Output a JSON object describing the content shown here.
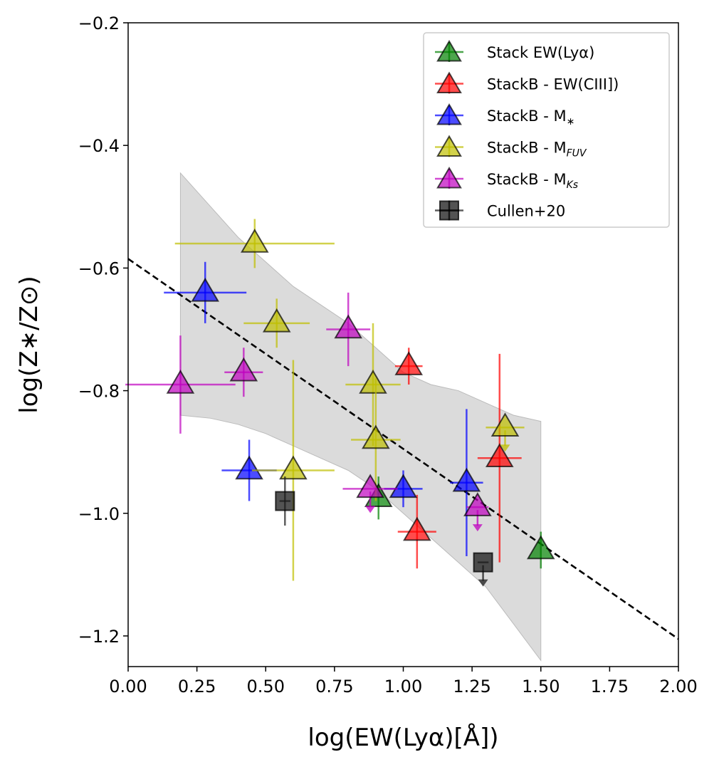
{
  "chart_data": {
    "type": "scatter",
    "title": "",
    "xlabel": "log(EW(Lyα)[Å])",
    "ylabel": "log(Z∗/Z⊙)",
    "xlim": [
      0.0,
      2.0
    ],
    "ylim": [
      -1.25,
      -0.2
    ],
    "xticks": [
      0.0,
      0.25,
      0.5,
      0.75,
      1.0,
      1.25,
      1.5,
      1.75,
      2.0
    ],
    "xtick_labels": [
      "0.00",
      "0.25",
      "0.50",
      "0.75",
      "1.00",
      "1.25",
      "1.50",
      "1.75",
      "2.00"
    ],
    "yticks": [
      -1.2,
      -1.0,
      -0.8,
      -0.6,
      -0.4,
      -0.2
    ],
    "ytick_labels": [
      "−1.2",
      "−1.0",
      "−0.8",
      "−0.6",
      "−0.4",
      "−0.2"
    ],
    "grid": false,
    "legend_position": "top-right",
    "fit_line": {
      "slope": -0.31,
      "intercept": -0.585,
      "style": "dashed",
      "color": "#000000"
    },
    "confidence_band": {
      "color": "#cccccc",
      "x": [
        0.19,
        0.3,
        0.4,
        0.5,
        0.6,
        0.7,
        0.8,
        0.9,
        1.0,
        1.1,
        1.2,
        1.3,
        1.4,
        1.5
      ],
      "upper": [
        -0.445,
        -0.5,
        -0.55,
        -0.59,
        -0.63,
        -0.66,
        -0.69,
        -0.73,
        -0.77,
        -0.79,
        -0.8,
        -0.82,
        -0.84,
        -0.85
      ],
      "lower": [
        -0.84,
        -0.845,
        -0.855,
        -0.87,
        -0.89,
        -0.91,
        -0.93,
        -0.96,
        -1.0,
        -1.04,
        -1.08,
        -1.12,
        -1.18,
        -1.24
      ]
    },
    "series": [
      {
        "name": "Stack EW(Lyα)",
        "legend_main": "Stack EW(Ly",
        "legend_sub": "",
        "legend_suffix": "α)",
        "color": "#008000",
        "marker": "triangle",
        "points": [
          {
            "x": 0.91,
            "y": -0.975,
            "xerr": 0.0,
            "yerr": 0.035,
            "upper_limit": false
          },
          {
            "x": 1.5,
            "y": -1.06,
            "xerr": 0.0,
            "yerr": 0.03,
            "upper_limit": false
          }
        ]
      },
      {
        "name": "StackB - EW(CIII])",
        "legend_main": "StackB - EW(CIII])",
        "legend_sub": "",
        "legend_suffix": "",
        "color": "#ff0000",
        "marker": "triangle",
        "points": [
          {
            "x": 1.02,
            "y": -0.76,
            "xerr": 0.05,
            "yerr": 0.03,
            "upper_limit": false
          },
          {
            "x": 1.05,
            "y": -1.03,
            "xerr": 0.07,
            "yerr": 0.06,
            "upper_limit": false
          },
          {
            "x": 1.35,
            "y": -0.91,
            "xerr": 0.08,
            "yerr": 0.17,
            "upper_limit": false
          }
        ]
      },
      {
        "name": "StackB - M∗",
        "legend_main": "StackB - M",
        "legend_sub": "∗",
        "legend_suffix": "",
        "color": "#0000ff",
        "marker": "triangle",
        "points": [
          {
            "x": 0.28,
            "y": -0.64,
            "xerr": 0.15,
            "yerr": 0.05,
            "upper_limit": false
          },
          {
            "x": 0.44,
            "y": -0.93,
            "xerr": 0.1,
            "yerr": 0.05,
            "upper_limit": false
          },
          {
            "x": 1.0,
            "y": -0.96,
            "xerr": 0.07,
            "yerr": 0.03,
            "upper_limit": false
          },
          {
            "x": 1.23,
            "y": -0.95,
            "xerr": 0.06,
            "yerr": 0.12,
            "upper_limit": false
          }
        ]
      },
      {
        "name": "StackB - MFUV",
        "legend_main": "StackB - M",
        "legend_sub": "FUV",
        "legend_suffix": "",
        "color": "#bfbf00",
        "marker": "triangle",
        "points": [
          {
            "x": 0.46,
            "y": -0.56,
            "xerr": 0.29,
            "yerr": 0.04,
            "upper_limit": false
          },
          {
            "x": 0.54,
            "y": -0.69,
            "xerr": 0.12,
            "yerr": 0.04,
            "upper_limit": false
          },
          {
            "x": 0.6,
            "y": -0.93,
            "xerr": 0.15,
            "yerr": 0.18,
            "upper_limit": false
          },
          {
            "x": 0.89,
            "y": -0.79,
            "xerr": 0.1,
            "yerr": 0.1,
            "upper_limit": false
          },
          {
            "x": 0.9,
            "y": -0.88,
            "xerr": 0.09,
            "yerr": 0.1,
            "upper_limit": false
          },
          {
            "x": 1.37,
            "y": -0.86,
            "xerr": 0.07,
            "yerr": 0.0,
            "upper_limit": true
          }
        ]
      },
      {
        "name": "StackB - MKs",
        "legend_main": "StackB - M",
        "legend_sub": "Ks",
        "legend_suffix": "",
        "color": "#bf00bf",
        "marker": "triangle",
        "points": [
          {
            "x": 0.19,
            "y": -0.79,
            "xerr": 0.2,
            "yerr": 0.08,
            "upper_limit": false
          },
          {
            "x": 0.42,
            "y": -0.77,
            "xerr": 0.07,
            "yerr": 0.04,
            "upper_limit": false
          },
          {
            "x": 0.8,
            "y": -0.7,
            "xerr": 0.08,
            "yerr": 0.06,
            "upper_limit": false
          },
          {
            "x": 0.88,
            "y": -0.96,
            "xerr": 0.1,
            "yerr": 0.0,
            "upper_limit": true
          },
          {
            "x": 1.27,
            "y": -0.99,
            "xerr": 0.04,
            "yerr": 0.0,
            "upper_limit": true
          }
        ]
      },
      {
        "name": "Cullen+20",
        "legend_main": "Cullen+20",
        "legend_sub": "",
        "legend_suffix": "",
        "color": "#1a1a1a",
        "marker": "square",
        "points": [
          {
            "x": 0.57,
            "y": -0.98,
            "xerr": 0.02,
            "yerr": 0.04,
            "upper_limit": false
          },
          {
            "x": 1.29,
            "y": -1.08,
            "xerr": 0.02,
            "yerr": 0.0,
            "upper_limit": true
          }
        ]
      }
    ]
  }
}
